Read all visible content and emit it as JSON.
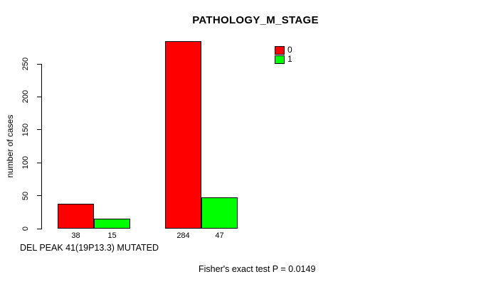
{
  "page": {
    "background": "#ffffff"
  },
  "chart_data": {
    "type": "bar",
    "title": "PATHOLOGY_M_STAGE",
    "ylabel": "number of cases",
    "xlabel": "DEL PEAK 41(19P13.3) MUTATED",
    "footnote": "Fisher's exact test P = 0.0149",
    "ylim": [
      0,
      250
    ],
    "yticks": [
      0,
      50,
      100,
      150,
      200,
      250
    ],
    "grid": false,
    "legend_position": "top-right",
    "legend": [
      {
        "label": "0",
        "color": "#FF0000"
      },
      {
        "label": "1",
        "color": "#00FF00"
      }
    ],
    "categories": [
      "group-1",
      "group-2"
    ],
    "series": [
      {
        "name": "0",
        "color": "#FF0000",
        "values": [
          38,
          284
        ]
      },
      {
        "name": "1",
        "color": "#00FF00",
        "values": [
          15,
          47
        ]
      }
    ],
    "bar_labels": [
      "38",
      "15",
      "284",
      "47"
    ]
  }
}
